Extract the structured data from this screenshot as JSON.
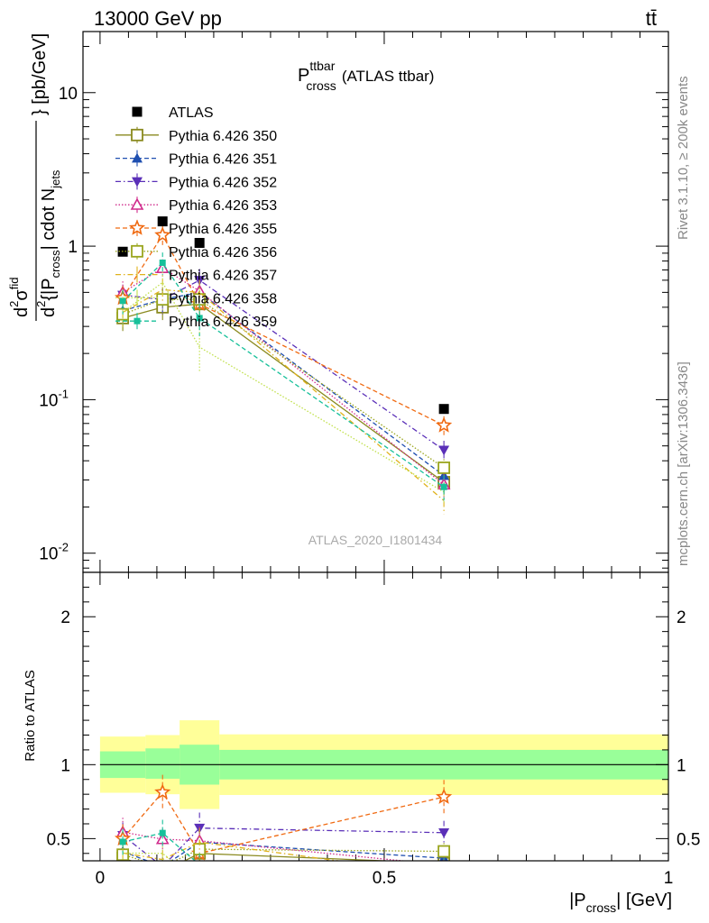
{
  "header": {
    "energy_label": "13000 GeV pp",
    "process_label": "tt̄"
  },
  "side_labels": {
    "rivet": "Rivet 3.1.10, ≥ 200k events",
    "mcplots": "mcplots.cern.ch [arXiv:1306.3436]"
  },
  "analysis_tag": "ATLAS_2020_I1801434",
  "legend": [
    {
      "name": "ATLAS",
      "color": "#000000",
      "marker": "filled-square",
      "dash": ""
    },
    {
      "name": "Pythia 6.426 350",
      "color": "#8a8a1f",
      "marker": "open-square",
      "dash": ""
    },
    {
      "name": "Pythia 6.426 351",
      "color": "#1f4fb0",
      "marker": "filled-triangle-up",
      "dash": "5,3"
    },
    {
      "name": "Pythia 6.426 352",
      "color": "#5a2fb8",
      "marker": "filled-triangle-down",
      "dash": "6,3,1.5,3"
    },
    {
      "name": "Pythia 6.426 353",
      "color": "#d02b8c",
      "marker": "open-triangle-up",
      "dash": "1.5,2"
    },
    {
      "name": "Pythia 6.426 355",
      "color": "#f06a12",
      "marker": "open-star",
      "dash": "5,3"
    },
    {
      "name": "Pythia 6.426 356",
      "color": "#9aa51e",
      "marker": "open-square",
      "dash": "1.5,2"
    },
    {
      "name": "Pythia 6.426 357",
      "color": "#e0b21c",
      "marker": "none",
      "dash": "6,3,1.5,3"
    },
    {
      "name": "Pythia 6.426 358",
      "color": "#c0e04a",
      "marker": "none",
      "dash": "1.5,2"
    },
    {
      "name": "Pythia 6.426 359",
      "color": "#17c09a",
      "marker": "filled-square-small",
      "dash": "5,3"
    }
  ],
  "chart_data": {
    "type": "line",
    "title": "P_cross^ttbar (ATLAS ttbar)",
    "title_main": "P",
    "title_sup": "ttbar",
    "title_sub": "cross",
    "title_tail": "(ATLAS ttbar)",
    "ylabel_parts": [
      "d",
      "2",
      "σ",
      "fid",
      "d",
      "2",
      "{|P",
      "cross",
      "| cdot N",
      "jets",
      "} [pb/GeV]"
    ],
    "xlabel_parts": [
      "|P",
      "cross",
      "| [GeV]"
    ],
    "ratio_ylabel": "Ratio to ATLAS",
    "xlim": [
      -0.03,
      1.0
    ],
    "ylim": [
      0.0075,
      25
    ],
    "yscale": "log",
    "ratio_ylim": [
      0.35,
      2.3
    ],
    "x_ticks": [
      0,
      0.5,
      1
    ],
    "x_tick_labels": [
      "0",
      "0.5",
      "1"
    ],
    "y_ticks": [
      0.01,
      0.1,
      1,
      10
    ],
    "ratio_ticks": [
      0.5,
      1,
      2
    ],
    "ratio_tick_labels": [
      "0.5",
      "1",
      "2"
    ],
    "x": [
      0.04,
      0.11,
      0.175,
      0.605
    ],
    "bins": [
      [
        0.0,
        0.08
      ],
      [
        0.08,
        0.14
      ],
      [
        0.14,
        0.21
      ],
      [
        0.21,
        1.0
      ]
    ],
    "data": {
      "values": [
        0.92,
        1.45,
        1.05,
        0.087
      ]
    },
    "band_inner": [
      [
        0.91,
        1.09
      ],
      [
        0.905,
        1.11
      ],
      [
        0.865,
        1.135
      ],
      [
        0.9,
        1.1
      ]
    ],
    "band_outer": [
      [
        0.81,
        1.19
      ],
      [
        0.8,
        1.2
      ],
      [
        0.7,
        1.3
      ],
      [
        0.795,
        1.205
      ]
    ],
    "series": [
      {
        "name": "Pythia 6.426 350",
        "values": [
          0.34,
          0.4,
          0.42,
          0.029
        ],
        "errors": [
          0.06,
          0.07,
          0.08,
          0.004
        ]
      },
      {
        "name": "Pythia 6.426 351",
        "values": [
          0.38,
          0.45,
          0.5,
          0.032
        ],
        "errors": [
          0.07,
          0.08,
          0.09,
          0.005
        ]
      },
      {
        "name": "Pythia 6.426 352",
        "values": [
          0.48,
          0.45,
          0.6,
          0.047
        ],
        "errors": [
          0.08,
          0.09,
          0.11,
          0.007
        ]
      },
      {
        "name": "Pythia 6.426 353",
        "values": [
          0.5,
          0.72,
          0.51,
          0.028
        ],
        "errors": [
          0.09,
          0.1,
          0.1,
          0.005
        ]
      },
      {
        "name": "Pythia 6.426 355",
        "values": [
          0.46,
          1.18,
          0.42,
          0.068
        ],
        "errors": [
          0.09,
          0.17,
          0.09,
          0.01
        ]
      },
      {
        "name": "Pythia 6.426 356",
        "values": [
          0.36,
          0.45,
          0.45,
          0.036
        ],
        "errors": [
          0.07,
          0.09,
          0.09,
          0.005
        ]
      },
      {
        "name": "Pythia 6.426 357",
        "values": [
          0.37,
          0.52,
          0.5,
          0.022
        ],
        "errors": [
          0.07,
          0.09,
          0.1,
          0.004
        ]
      },
      {
        "name": "Pythia 6.426 358",
        "values": [
          0.37,
          0.58,
          0.22,
          0.025
        ],
        "errors": [
          0.07,
          0.1,
          0.07,
          0.004
        ]
      },
      {
        "name": "Pythia 6.426 359",
        "values": [
          0.44,
          0.78,
          0.34,
          0.027
        ],
        "errors": [
          0.08,
          0.13,
          0.08,
          0.005
        ]
      }
    ]
  }
}
